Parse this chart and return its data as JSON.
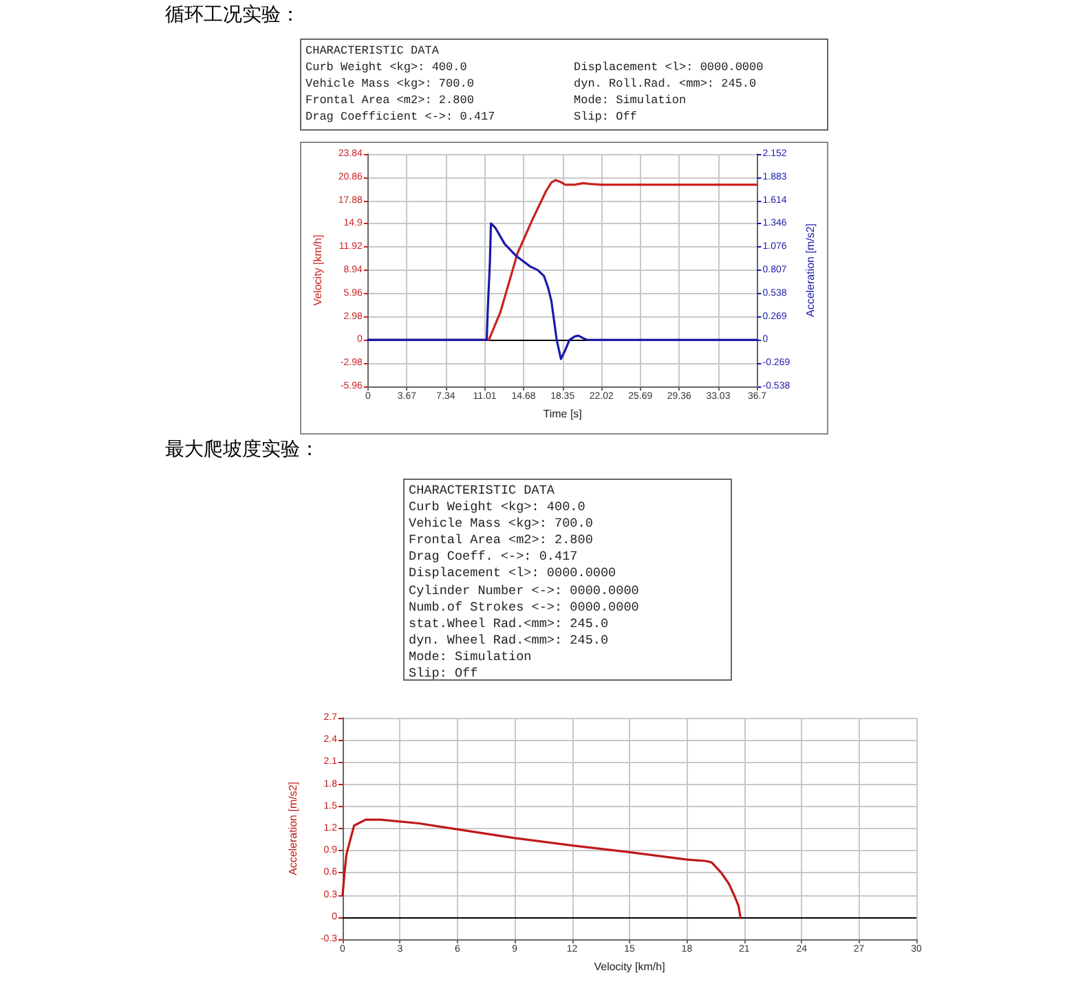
{
  "chart_data": [
    {
      "type": "other",
      "title": "循环工况实验：",
      "annotations": [
        "CHARACTERISTIC DATA",
        "Curb Weight <kg>: 400.0",
        "Vehicle Mass <kg>: 700.0",
        "Frontal Area <m2>: 2.800",
        "Drag Coefficient <->: 0.417",
        "Displacement <l>: 0000.0000",
        "dyn. Roll.Rad. <mm>: 245.0",
        "Mode: Simulation",
        "Slip: Off"
      ]
    },
    {
      "type": "line",
      "xlabel": "Time [s]",
      "ylabel": "Velocity [km/h]",
      "y2label": "Acceleration [m/s2]",
      "xlim": [
        0,
        36.7
      ],
      "xticks": [
        0,
        3.67,
        7.34,
        11.01,
        14.68,
        18.35,
        22.02,
        25.69,
        29.36,
        33.03,
        36.7
      ],
      "ylim": [
        -5.96,
        23.84
      ],
      "yticks": [
        -5.96,
        -2.98,
        0,
        2.98,
        5.96,
        8.94,
        11.92,
        14.9,
        17.88,
        20.86,
        23.84
      ],
      "y2lim": [
        -0.538,
        2.152
      ],
      "y2ticks": [
        -0.538,
        -0.269,
        0,
        0.269,
        0.538,
        0.807,
        1.076,
        1.346,
        1.614,
        1.883,
        2.152
      ],
      "grid": true,
      "marker": "none",
      "line_style": "solid",
      "ref_lines": [
        {
          "axis": "y",
          "value": 0,
          "color": "#000000"
        }
      ],
      "series": [
        {
          "color": "#cc2222",
          "x": [
            0,
            11.4,
            12.5,
            14.1,
            15.5,
            16.8,
            17.3,
            17.7,
            18.1,
            18.6,
            19.5,
            20.3,
            21.0,
            22.0,
            36.7
          ],
          "values": [
            0,
            0,
            3.6,
            11.1,
            15.4,
            19.1,
            20.2,
            20.5,
            20.3,
            19.9,
            19.9,
            20.1,
            20.0,
            19.9,
            19.9
          ]
        },
        {
          "color": "#1a1aaa",
          "axis": "y2",
          "x": [
            0,
            11.2,
            11.3,
            11.5,
            11.6,
            12.0,
            12.9,
            14.0,
            15.3,
            16.0,
            16.6,
            17.0,
            17.3,
            17.8,
            18.2,
            18.6,
            19.0,
            19.5,
            19.85,
            20.3,
            20.7,
            36.7
          ],
          "values": [
            0,
            0,
            0.35,
            0.9,
            1.35,
            1.3,
            1.11,
            0.97,
            0.85,
            0.81,
            0.74,
            0.6,
            0.45,
            0,
            -0.22,
            -0.12,
            0,
            0.04,
            0.05,
            0.02,
            0,
            0
          ]
        }
      ]
    },
    {
      "type": "other",
      "title": "最大爬坡度实验：",
      "annotations": [
        "CHARACTERISTIC DATA",
        "Curb Weight <kg>: 400.0",
        "Vehicle Mass <kg>: 700.0",
        "Frontal Area <m2>: 2.800",
        "Drag Coeff. <->: 0.417",
        "Displacement <l>: 0000.0000",
        "Cylinder Number <->: 0000.0000",
        "Numb.of Strokes <->: 0000.0000",
        "stat.Wheel Rad.<mm>: 245.0",
        "dyn. Wheel Rad.<mm>: 245.0",
        "Mode: Simulation",
        "Slip: Off"
      ]
    },
    {
      "type": "line",
      "xlabel": "Velocity [km/h]",
      "ylabel": "Acceleration [m/s2]",
      "xlim": [
        0,
        30
      ],
      "xticks": [
        0,
        3,
        6,
        9,
        12,
        15,
        18,
        21,
        24,
        27,
        30
      ],
      "ylim": [
        -0.3,
        2.7
      ],
      "yticks": [
        -0.3,
        0,
        0.3,
        0.6,
        0.9,
        1.2,
        1.5,
        1.8,
        2.1,
        2.4,
        2.7
      ],
      "grid": true,
      "marker": "none",
      "line_style": "solid",
      "ref_lines": [
        {
          "axis": "y",
          "value": 0,
          "color": "#000000"
        }
      ],
      "series": [
        {
          "color": "#c01818",
          "x": [
            0.0,
            0.05,
            0.1,
            0.2,
            0.6,
            1.2,
            2,
            4,
            6,
            9,
            12,
            15,
            18,
            19,
            19.3,
            19.8,
            20.2,
            20.5,
            20.7,
            20.8
          ],
          "values": [
            0.3,
            0.45,
            0.6,
            0.85,
            1.24,
            1.32,
            1.32,
            1.27,
            1.19,
            1.07,
            0.97,
            0.88,
            0.78,
            0.76,
            0.74,
            0.6,
            0.45,
            0.28,
            0.15,
            0
          ]
        }
      ]
    }
  ]
}
